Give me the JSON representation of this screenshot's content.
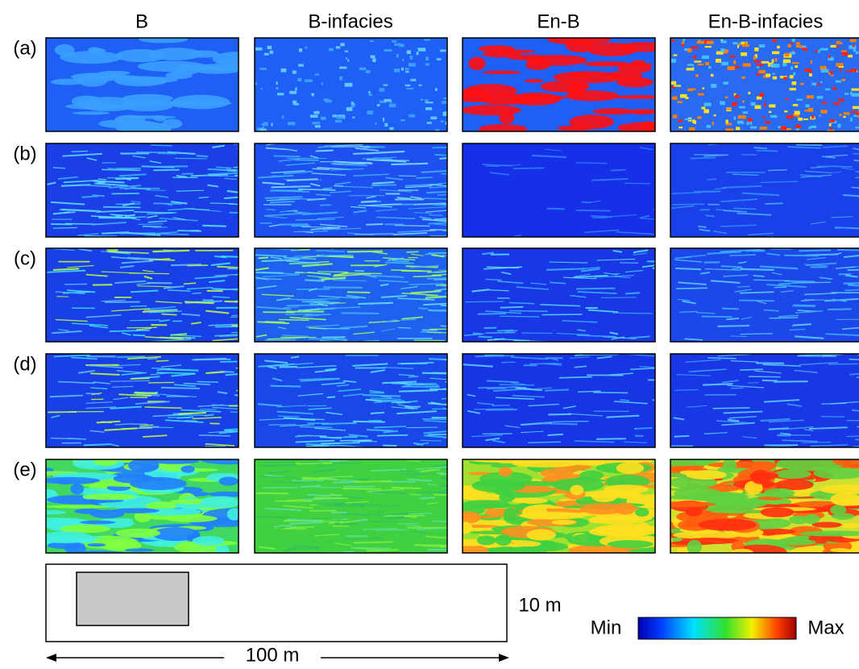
{
  "columns": [
    "B",
    "B-infacies",
    "En-B",
    "En-B-infacies"
  ],
  "rows": [
    "(a)",
    "(b)",
    "(c)",
    "(d)",
    "(e)"
  ],
  "scale": {
    "height": "10 m",
    "length": "100 m"
  },
  "colorbar": {
    "min": "Min",
    "max": "Max"
  }
}
